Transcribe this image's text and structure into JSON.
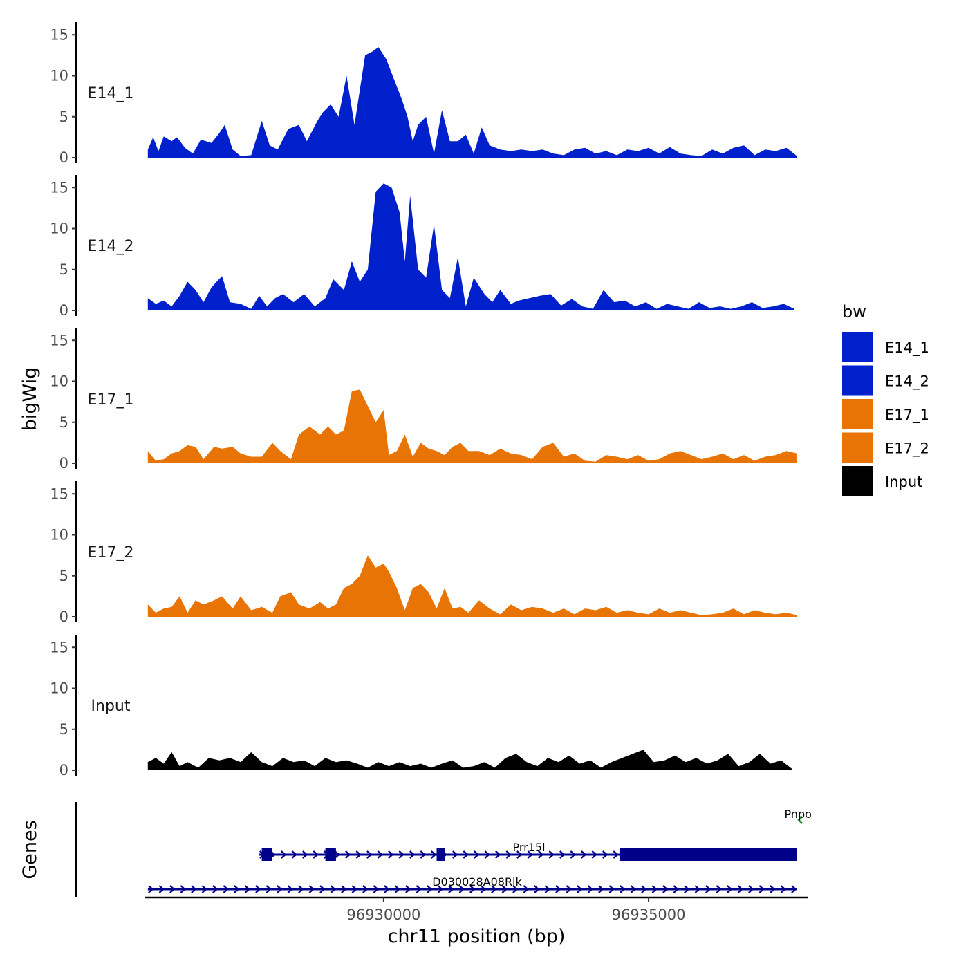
{
  "chart_data": {
    "type": "area",
    "title": "",
    "ylabel": "bigWig",
    "xlabel": "chr11 position (bp)",
    "genes_label": "Genes",
    "xlim": [
      96925500,
      96938000
    ],
    "ylim": [
      0,
      16
    ],
    "yticks": [
      0,
      5,
      10,
      15
    ],
    "xticks": [
      96930000,
      96935000
    ],
    "xtick_labels": [
      "96930000",
      "96935000"
    ],
    "legend": {
      "title": "bw",
      "position": "right",
      "entries": [
        {
          "label": "E14_1",
          "color": "#0020CC"
        },
        {
          "label": "E14_2",
          "color": "#0020CC"
        },
        {
          "label": "E17_1",
          "color": "#E87405"
        },
        {
          "label": "E17_2",
          "color": "#E87405"
        },
        {
          "label": "Input",
          "color": "#000000"
        }
      ]
    },
    "series": [
      {
        "name": "E14_1",
        "color": "#0020CC",
        "x": [
          96925550,
          96925650,
          96925750,
          96925850,
          96926000,
          96926100,
          96926250,
          96926400,
          96926550,
          96926750,
          96926900,
          96927000,
          96927150,
          96927300,
          96927500,
          96927700,
          96927850,
          96928000,
          96928200,
          96928400,
          96928550,
          96928750,
          96928850,
          96929000,
          96929150,
          96929300,
          96929450,
          96929650,
          96929800,
          96929900,
          96930050,
          96930200,
          96930350,
          96930450,
          96930550,
          96930650,
          96930800,
          96930950,
          96931100,
          96931250,
          96931400,
          96931550,
          96931700,
          96931850,
          96932000,
          96932200,
          96932400,
          96932600,
          96932800,
          96933000,
          96933200,
          96933400,
          96933600,
          96933800,
          96934000,
          96934200,
          96934400,
          96934600,
          96934800,
          96935000,
          96935200,
          96935400,
          96935600,
          96935800,
          96936000,
          96936200,
          96936400,
          96936600,
          96936800,
          96937000,
          96937200,
          96937400,
          96937600,
          96937800
        ],
        "y": [
          1.0,
          2.5,
          0.8,
          2.6,
          2.0,
          2.5,
          1.2,
          0.5,
          2.2,
          1.8,
          3.0,
          4.0,
          1.0,
          0.2,
          0.3,
          4.5,
          1.5,
          1.0,
          3.5,
          4.0,
          2.0,
          4.5,
          5.5,
          6.5,
          5.0,
          10.0,
          4.0,
          12.5,
          13.0,
          13.5,
          12.0,
          9.5,
          7.0,
          5.0,
          2.0,
          4.0,
          5.0,
          0.5,
          5.8,
          2.0,
          2.0,
          2.8,
          0.5,
          3.7,
          1.5,
          1.0,
          0.8,
          1.0,
          0.8,
          1.0,
          0.5,
          0.3,
          1.0,
          1.2,
          0.5,
          0.8,
          0.3,
          1.0,
          0.8,
          1.2,
          0.5,
          1.3,
          0.5,
          0.3,
          0.2,
          1.0,
          0.5,
          1.2,
          1.5,
          0.3,
          1.0,
          0.8,
          1.2,
          0.2
        ]
      },
      {
        "name": "E14_2",
        "color": "#0020CC",
        "x": [
          96925550,
          96925700,
          96925850,
          96926000,
          96926150,
          96926300,
          96926450,
          96926600,
          96926750,
          96926950,
          96927100,
          96927300,
          96927500,
          96927650,
          96927800,
          96927950,
          96928100,
          96928300,
          96928500,
          96928700,
          96928900,
          96929050,
          96929250,
          96929400,
          96929550,
          96929700,
          96929850,
          96930000,
          96930150,
          96930300,
          96930400,
          96930500,
          96930650,
          96930800,
          96930950,
          96931100,
          96931250,
          96931400,
          96931550,
          96931700,
          96931900,
          96932050,
          96932200,
          96932400,
          96932550,
          96932750,
          96932950,
          96933150,
          96933350,
          96933550,
          96933750,
          96933950,
          96934150,
          96934350,
          96934550,
          96934750,
          96934950,
          96935150,
          96935350,
          96935550,
          96935750,
          96935950,
          96936150,
          96936350,
          96936550,
          96936750,
          96936950,
          96937150,
          96937350,
          96937550,
          96937750
        ],
        "y": [
          1.5,
          0.8,
          1.2,
          0.5,
          1.8,
          3.5,
          2.5,
          1.0,
          2.8,
          4.2,
          1.0,
          0.8,
          0.2,
          1.8,
          0.5,
          1.5,
          2.0,
          1.0,
          2.0,
          0.5,
          1.5,
          3.8,
          2.5,
          6.0,
          3.5,
          5.0,
          14.5,
          15.5,
          15.0,
          12.0,
          6.0,
          14.0,
          5.0,
          4.0,
          10.5,
          2.5,
          1.5,
          6.5,
          0.5,
          4.0,
          2.0,
          1.0,
          2.5,
          0.8,
          1.2,
          1.5,
          1.8,
          2.0,
          0.6,
          1.4,
          0.5,
          0.2,
          2.5,
          1.0,
          1.2,
          0.5,
          1.0,
          0.2,
          0.8,
          0.5,
          0.2,
          1.0,
          0.3,
          0.5,
          0.2,
          0.5,
          1.0,
          0.3,
          0.5,
          0.8,
          0.2
        ]
      },
      {
        "name": "E17_1",
        "color": "#E87405",
        "x": [
          96925550,
          96925700,
          96925850,
          96926000,
          96926150,
          96926300,
          96926450,
          96926600,
          96926800,
          96926950,
          96927150,
          96927300,
          96927500,
          96927700,
          96927900,
          96928050,
          96928250,
          96928400,
          96928600,
          96928800,
          96928950,
          96929100,
          96929250,
          96929400,
          96929550,
          96929700,
          96929850,
          96930000,
          96930100,
          96930250,
          96930400,
          96930550,
          96930700,
          96930850,
          96931000,
          96931150,
          96931300,
          96931450,
          96931600,
          96931800,
          96932000,
          96932200,
          96932400,
          96932600,
          96932800,
          96933000,
          96933200,
          96933400,
          96933600,
          96933800,
          96934000,
          96934200,
          96934400,
          96934600,
          96934800,
          96935000,
          96935200,
          96935400,
          96935600,
          96935800,
          96936000,
          96936200,
          96936400,
          96936600,
          96936800,
          96937000,
          96937200,
          96937400,
          96937600,
          96937800
        ],
        "y": [
          1.5,
          0.3,
          0.5,
          1.2,
          1.5,
          2.2,
          2.0,
          0.5,
          2.0,
          1.8,
          2.0,
          1.2,
          0.8,
          0.8,
          2.5,
          1.5,
          0.5,
          3.5,
          4.5,
          3.5,
          4.5,
          3.5,
          4.0,
          8.8,
          9.0,
          7.0,
          5.0,
          6.5,
          1.0,
          1.5,
          3.5,
          0.8,
          2.5,
          1.8,
          1.5,
          1.0,
          2.0,
          2.5,
          1.5,
          1.5,
          1.0,
          1.8,
          1.2,
          1.0,
          0.5,
          2.0,
          2.5,
          0.8,
          1.2,
          0.3,
          0.2,
          1.0,
          0.8,
          0.5,
          1.0,
          0.3,
          0.5,
          1.2,
          1.5,
          1.0,
          0.5,
          0.8,
          1.2,
          0.5,
          1.0,
          0.3,
          0.8,
          1.0,
          1.5,
          1.2
        ]
      },
      {
        "name": "E17_2",
        "color": "#E87405",
        "x": [
          96925550,
          96925700,
          96925850,
          96926000,
          96926150,
          96926300,
          96926450,
          96926600,
          96926800,
          96926950,
          96927150,
          96927300,
          96927500,
          96927700,
          96927900,
          96928050,
          96928250,
          96928400,
          96928600,
          96928800,
          96928950,
          96929100,
          96929250,
          96929400,
          96929550,
          96929700,
          96929850,
          96930000,
          96930100,
          96930250,
          96930400,
          96930550,
          96930700,
          96930850,
          96931000,
          96931150,
          96931300,
          96931450,
          96931600,
          96931800,
          96932000,
          96932200,
          96932400,
          96932600,
          96932800,
          96933000,
          96933200,
          96933400,
          96933600,
          96933800,
          96934000,
          96934200,
          96934400,
          96934600,
          96934800,
          96935000,
          96935200,
          96935400,
          96935600,
          96935800,
          96936000,
          96936200,
          96936400,
          96936600,
          96936800,
          96937000,
          96937200,
          96937400,
          96937600,
          96937800
        ],
        "y": [
          1.5,
          0.5,
          1.0,
          1.2,
          2.5,
          0.5,
          2.0,
          1.5,
          2.0,
          2.5,
          1.0,
          2.5,
          0.8,
          1.2,
          0.5,
          2.5,
          3.0,
          1.5,
          1.0,
          1.8,
          1.0,
          1.5,
          3.5,
          4.0,
          5.0,
          7.5,
          6.0,
          6.5,
          5.5,
          3.5,
          0.8,
          3.5,
          4.0,
          3.0,
          1.0,
          3.5,
          1.0,
          1.2,
          0.5,
          2.0,
          1.0,
          0.3,
          1.5,
          0.8,
          1.2,
          1.0,
          0.5,
          1.0,
          0.3,
          1.0,
          0.8,
          1.2,
          0.5,
          0.8,
          0.5,
          0.3,
          1.0,
          0.5,
          0.8,
          0.5,
          0.2,
          0.3,
          0.5,
          1.0,
          0.3,
          0.8,
          0.5,
          0.3,
          0.5,
          0.2
        ]
      },
      {
        "name": "Input",
        "color": "#000000",
        "x": [
          96925550,
          96925700,
          96925850,
          96926000,
          96926150,
          96926300,
          96926500,
          96926700,
          96926900,
          96927100,
          96927300,
          96927500,
          96927700,
          96927900,
          96928100,
          96928300,
          96928500,
          96928700,
          96928900,
          96929100,
          96929300,
          96929500,
          96929700,
          96929900,
          96930100,
          96930300,
          96930500,
          96930700,
          96930900,
          96931100,
          96931300,
          96931500,
          96931700,
          96931900,
          96932100,
          96932300,
          96932500,
          96932700,
          96932900,
          96933100,
          96933300,
          96933500,
          96933700,
          96933900,
          96934100,
          96934300,
          96934500,
          96934700,
          96934900,
          96935100,
          96935300,
          96935500,
          96935700,
          96935900,
          96936100,
          96936300,
          96936500,
          96936700,
          96936900,
          96937100,
          96937300,
          96937500,
          96937700
        ],
        "y": [
          1.0,
          1.5,
          0.8,
          2.2,
          0.5,
          1.0,
          0.3,
          1.5,
          1.2,
          1.5,
          1.0,
          2.2,
          1.0,
          0.5,
          1.5,
          1.0,
          1.2,
          0.5,
          1.5,
          1.0,
          1.2,
          0.8,
          0.3,
          1.0,
          0.5,
          1.0,
          0.5,
          0.8,
          0.3,
          0.8,
          1.2,
          0.3,
          0.5,
          1.0,
          0.3,
          1.5,
          2.0,
          1.0,
          0.5,
          1.5,
          1.0,
          1.8,
          0.8,
          1.2,
          0.3,
          1.0,
          1.5,
          2.0,
          2.5,
          1.0,
          1.2,
          1.8,
          1.0,
          1.5,
          0.8,
          1.2,
          2.0,
          0.5,
          1.0,
          2.0,
          0.8,
          1.2,
          0.2
        ]
      }
    ],
    "genes": [
      {
        "name": "Pnpo",
        "color": "#2E8B2E",
        "strand": "-",
        "start": 96937830,
        "end": 96937950,
        "row": 0,
        "exons": []
      },
      {
        "name": "Prr15l",
        "color": "#00008B",
        "strand": "+",
        "start": 96927650,
        "end": 96937800,
        "row": 1,
        "exons": [
          [
            96927700,
            96927900
          ],
          [
            96928900,
            96929100
          ],
          [
            96931000,
            96931150
          ],
          [
            96934450,
            96937800
          ]
        ]
      },
      {
        "name": "D030028A08Rik",
        "color": "#00008B",
        "strand": "+",
        "start": 96925550,
        "end": 96937800,
        "row": 2,
        "exons": []
      }
    ]
  }
}
